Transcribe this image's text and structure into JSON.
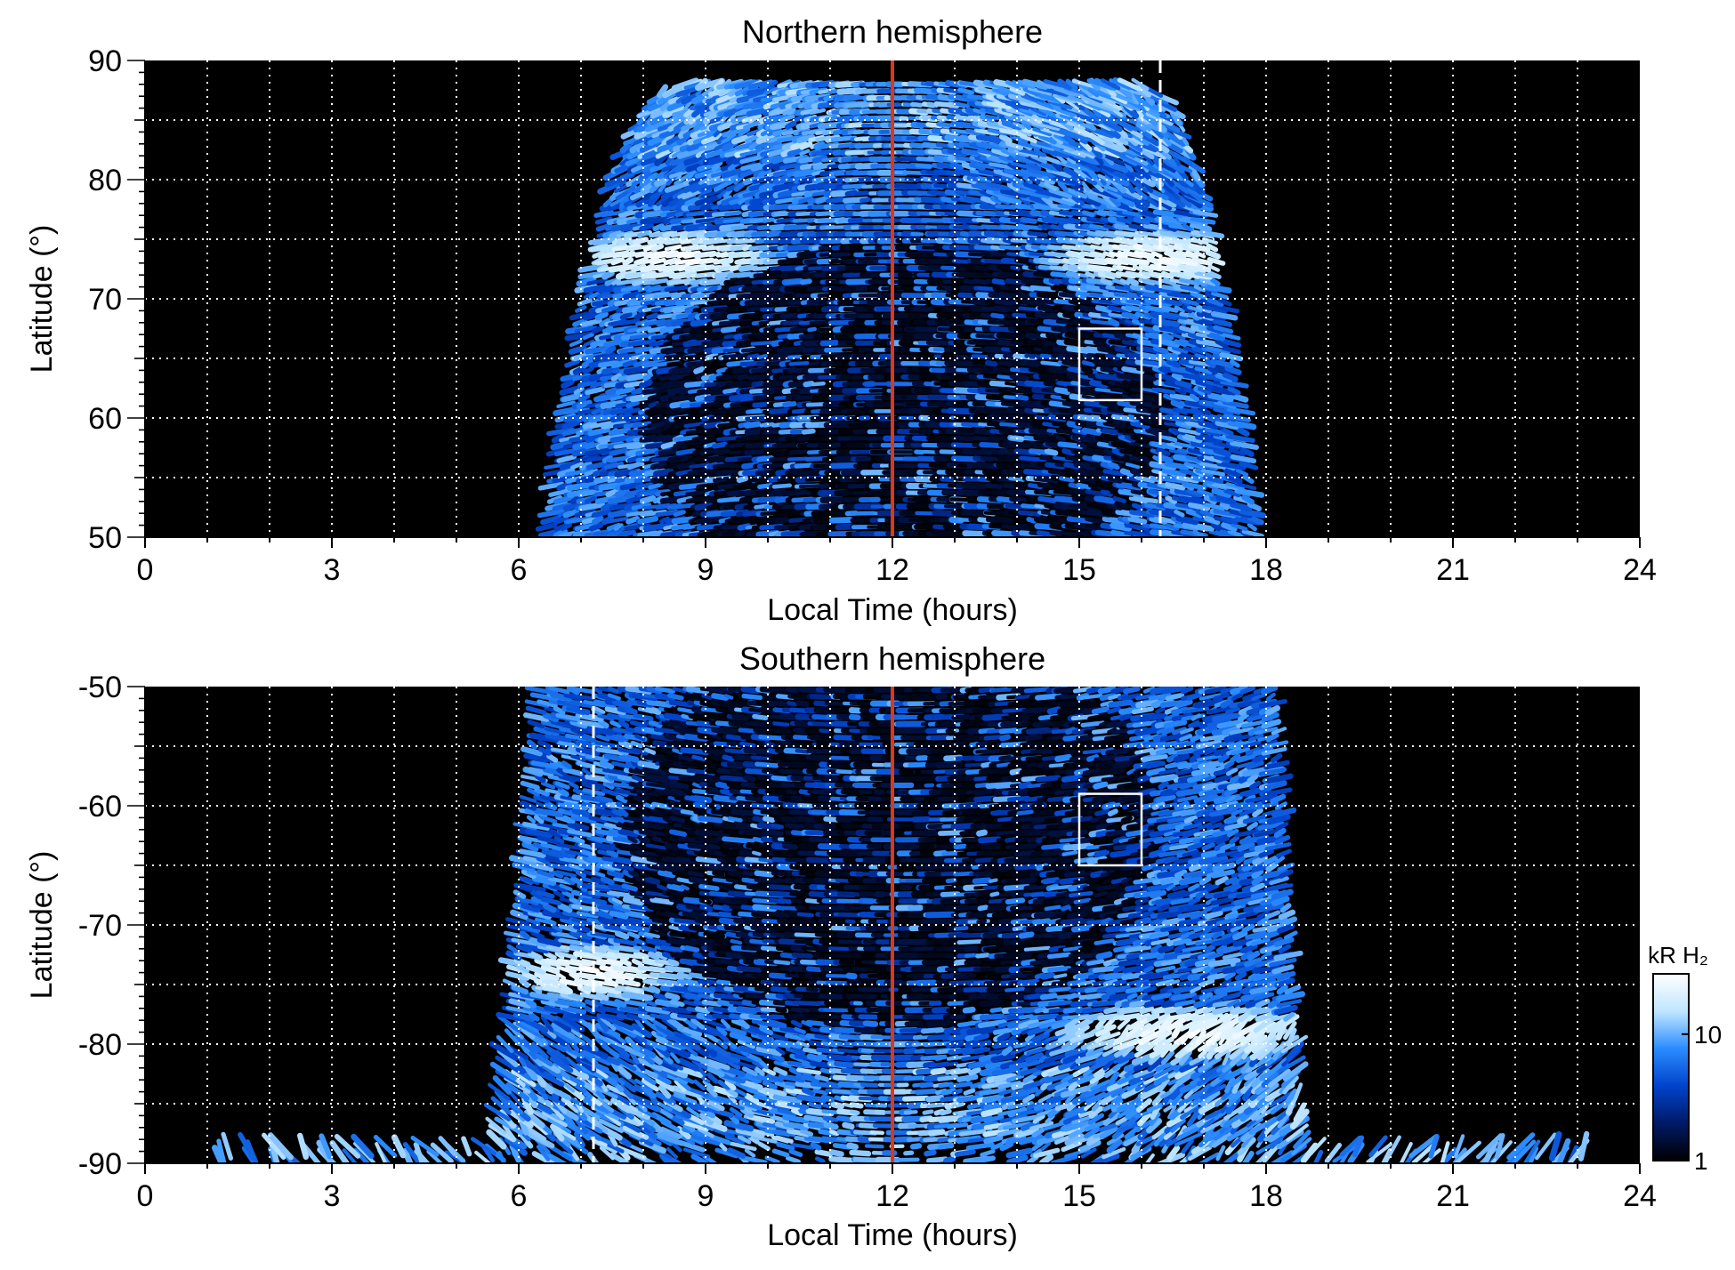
{
  "chart_data": [
    {
      "type": "heatmap",
      "title": "Northern hemisphere",
      "xlabel": "Local Time (hours)",
      "ylabel": "Latitude (°)",
      "xlim": [
        0,
        24
      ],
      "ylim": [
        50,
        90
      ],
      "x_ticks": [
        0,
        3,
        6,
        9,
        12,
        15,
        18,
        21,
        24
      ],
      "y_ticks": [
        50,
        60,
        70,
        80,
        90
      ],
      "x_tick_labels": [
        "0",
        "3",
        "6",
        "9",
        "12",
        "15",
        "18",
        "21",
        "24"
      ],
      "y_tick_labels": [
        "50",
        "60",
        "70",
        "80",
        "90"
      ],
      "grid": true,
      "noon_line_x": 12,
      "dashed_line_x": 16.3,
      "box": {
        "x0": 15.0,
        "x1": 16.0,
        "y0": 61.5,
        "y1": 67.5
      },
      "coverage": {
        "bottom_x": [
          6.4,
          17.9
        ],
        "mid_x": [
          6.8,
          17.6
        ],
        "top_x": [
          8.6,
          16.0
        ],
        "top_lat": 88
      },
      "bright_arcs": [
        {
          "x_center": 8.5,
          "lat": 73.5,
          "x_halfwidth": 1.7
        },
        {
          "x_center": 16.2,
          "lat": 73.5,
          "x_halfwidth": 1.8
        }
      ],
      "dark_core": {
        "x_center": 12.2,
        "lat_center": 60,
        "x_halfwidth": 4.2,
        "lat_halfheight": 15
      }
    },
    {
      "type": "heatmap",
      "title": "Southern hemisphere",
      "xlabel": "Local Time (hours)",
      "ylabel": "Latitude (°)",
      "xlim": [
        0,
        24
      ],
      "ylim": [
        -90,
        -50
      ],
      "x_ticks": [
        0,
        3,
        6,
        9,
        12,
        15,
        18,
        21,
        24
      ],
      "y_ticks": [
        -90,
        -80,
        -70,
        -60,
        -50
      ],
      "x_tick_labels": [
        "0",
        "3",
        "6",
        "9",
        "12",
        "15",
        "18",
        "21",
        "24"
      ],
      "y_tick_labels": [
        "-90",
        "-80",
        "-70",
        "-60",
        "-50"
      ],
      "grid": true,
      "noon_line_x": 12,
      "dashed_line_x": 7.2,
      "box": {
        "x0": 15.0,
        "x1": 16.0,
        "y0": -65.0,
        "y1": -59.0
      },
      "coverage": {
        "top_x": [
          6.3,
          18.2
        ],
        "mid_x": [
          5.6,
          18.6
        ],
        "bottom_x": [
          1.2,
          23.2
        ],
        "bottom_lat": -89.5
      },
      "bright_arcs": [
        {
          "x_center": 7.2,
          "lat": -74,
          "x_halfwidth": 1.5
        },
        {
          "x_center": 16.8,
          "lat": -79,
          "x_halfwidth": 2.2
        }
      ],
      "dark_core": {
        "x_center": 12.0,
        "lat_center": -62,
        "x_halfwidth": 4.3,
        "lat_halfheight": 17
      }
    }
  ],
  "colorbar": {
    "label": "kR H₂",
    "ticks": [
      {
        "value": 1,
        "label": "1"
      },
      {
        "value": 10,
        "label": "10"
      }
    ],
    "scale": "log",
    "range": [
      1,
      30
    ],
    "colors": [
      "#000000",
      "#001a66",
      "#0044cc",
      "#2b8cff",
      "#bfe6ff",
      "#ffffff"
    ]
  },
  "colors": {
    "background": "#000000",
    "noon_line": "#d9391a",
    "grid": "#ffffff",
    "box": "#ffffff"
  }
}
